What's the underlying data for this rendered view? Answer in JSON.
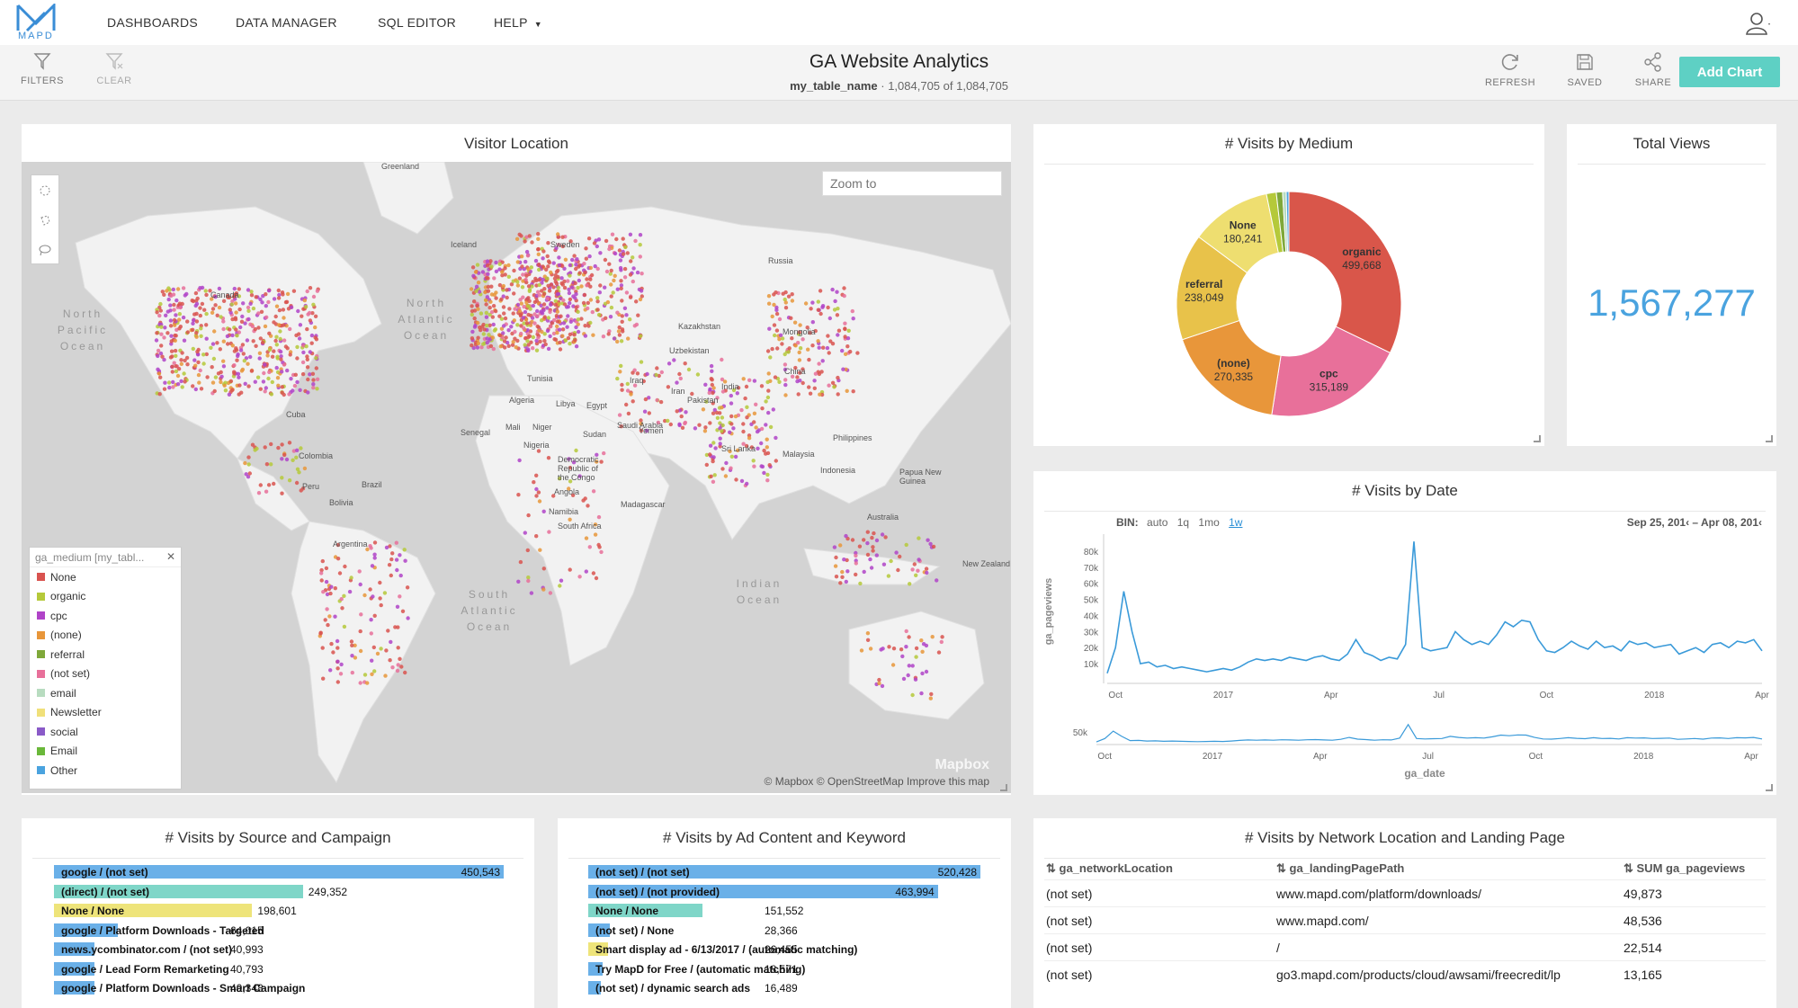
{
  "nav": {
    "logo_text": "MAPD",
    "items": [
      "DASHBOARDS",
      "DATA MANAGER",
      "SQL EDITOR",
      "HELP"
    ]
  },
  "toolbar": {
    "filters": "FILTERS",
    "clear": "CLEAR",
    "title": "GA Website Analytics",
    "table_name": "my_table_name",
    "row_count": "1,084,705 of 1,084,705",
    "refresh": "REFRESH",
    "saved": "SAVED",
    "share": "SHARE",
    "add_chart": "Add Chart"
  },
  "map": {
    "title": "Visitor Location",
    "zoom_placeholder": "Zoom to",
    "legend_title": "ga_medium [my_tabl...",
    "legend": [
      {
        "label": "None",
        "color": "#d9534f"
      },
      {
        "label": "organic",
        "color": "#b5c93a"
      },
      {
        "label": "cpc",
        "color": "#b044c8"
      },
      {
        "label": "(none)",
        "color": "#e8963a"
      },
      {
        "label": "referral",
        "color": "#7fa83a"
      },
      {
        "label": "(not set)",
        "color": "#e8709a"
      },
      {
        "label": "email",
        "color": "#b8dcc0"
      },
      {
        "label": "Newsletter",
        "color": "#f0e07a"
      },
      {
        "label": "social",
        "color": "#8a5ac8"
      },
      {
        "label": "Email",
        "color": "#6ab83a"
      },
      {
        "label": "Other",
        "color": "#4aa3df"
      }
    ],
    "attribution": "© Mapbox   © OpenStreetMap   Improve this map",
    "mapbox": "Mapbox",
    "place_labels": [
      "Greenland",
      "Iceland",
      "Sweden",
      "Russia",
      "Canada",
      "Kazakhstan",
      "Mongolia",
      "Uzbekistan",
      "China",
      "Tunisia",
      "Iraq",
      "Iran",
      "Pakistan",
      "Algeria",
      "Libya",
      "Egypt",
      "Saudi Arabia",
      "Yemen",
      "Mali",
      "Niger",
      "Sudan",
      "Senegal",
      "Nigeria",
      "Democratic Republic of the Congo",
      "Angola",
      "Namibia",
      "South Africa",
      "Madagascar",
      "India",
      "Sri Lanka",
      "Philippines",
      "Malaysia",
      "Indonesia",
      "Papua New Guinea",
      "Australia",
      "New Zealand",
      "Cuba",
      "Colombia",
      "Peru",
      "Brazil",
      "Bolivia",
      "Argentina"
    ],
    "oceans": [
      "North Pacific Ocean",
      "North Atlantic Ocean",
      "South Atlantic Ocean",
      "Indian Ocean"
    ]
  },
  "medium_chart": {
    "title": "# Visits by Medium",
    "chart_data": {
      "type": "pie",
      "slices": [
        {
          "label": "organic",
          "value": 499668,
          "display": "499,668",
          "color": "#d9564a"
        },
        {
          "label": "cpc",
          "value": 315189,
          "display": "315,189",
          "color": "#e8709a"
        },
        {
          "label": "(none)",
          "value": 270335,
          "display": "270,335",
          "color": "#e8963a"
        },
        {
          "label": "referral",
          "value": 238049,
          "display": "238,049",
          "color": "#e8c24a"
        },
        {
          "label": "None",
          "value": 180241,
          "display": "180,241",
          "color": "#eede70"
        },
        {
          "label": "",
          "value": 22000,
          "display": "",
          "color": "#b5c93a"
        },
        {
          "label": "",
          "value": 14000,
          "display": "",
          "color": "#7fa83a"
        },
        {
          "label": "",
          "value": 8000,
          "display": "",
          "color": "#b8dcc0"
        },
        {
          "label": "",
          "value": 6000,
          "display": "",
          "color": "#4aa3df"
        }
      ]
    }
  },
  "total_views": {
    "title": "Total Views",
    "value": "1,567,277"
  },
  "date_chart": {
    "title": "# Visits by Date",
    "bin_label": "BIN:",
    "bin_options": [
      "auto",
      "1q",
      "1mo",
      "1w"
    ],
    "bin_active": "1w",
    "range": "Sep 25, 201‹ – Apr 08, 201‹",
    "chart_data": {
      "type": "line",
      "ylabel": "ga_pageviews",
      "xlabel": "ga_date",
      "yticks": [
        "10k",
        "20k",
        "30k",
        "40k",
        "50k",
        "60k",
        "70k",
        "80k"
      ],
      "ylim": [
        0,
        85000
      ],
      "xticks": [
        "Oct",
        "2017",
        "Apr",
        "Jul",
        "Oct",
        "2018",
        "Apr"
      ],
      "xtick_weeks": [
        1,
        14,
        27,
        40,
        53,
        66,
        79
      ],
      "brush_ytick": "50k",
      "values": [
        4000,
        20000,
        55000,
        30000,
        10000,
        11000,
        8000,
        9000,
        7000,
        8000,
        7000,
        6000,
        5000,
        6000,
        7000,
        6000,
        8000,
        11000,
        13000,
        12000,
        13000,
        12000,
        14000,
        13000,
        12000,
        14000,
        15000,
        13000,
        12000,
        16000,
        25000,
        17000,
        15000,
        12000,
        14000,
        13000,
        22000,
        86000,
        20000,
        18000,
        19000,
        20000,
        30000,
        25000,
        22000,
        24000,
        22000,
        28000,
        36000,
        33000,
        37000,
        36000,
        25000,
        18000,
        17000,
        20000,
        24000,
        21000,
        19000,
        24000,
        20000,
        21000,
        18000,
        24000,
        22000,
        23000,
        20000,
        21000,
        22000,
        16000,
        18000,
        20000,
        17000,
        22000,
        23000,
        20000,
        24000,
        23000,
        25000,
        18000
      ]
    }
  },
  "source_chart": {
    "title": "# Visits by Source and Campaign",
    "chart_data": {
      "type": "bar",
      "categories": [
        "google / (not set)",
        "(direct) / (not set)",
        "None / None",
        "google / Platform Downloads - Targeted",
        "news.ycombinator.com / (not set)",
        "google / Lead Form Remarketing",
        "google / Platform Downloads - Smart Campaign"
      ],
      "values": [
        450543,
        249352,
        198601,
        64015,
        40993,
        40793,
        40348
      ],
      "labels": [
        "450,543",
        "249,352",
        "198,601",
        "64,015",
        "40,993",
        "40,793",
        "40,348"
      ],
      "colors": [
        "#6ab0e8",
        "#7fd6c8",
        "#eee47a",
        "#6ab0e8",
        "#6ab0e8",
        "#6ab0e8",
        "#6ab0e8"
      ]
    }
  },
  "adcontent_chart": {
    "title": "# Visits by Ad Content and Keyword",
    "chart_data": {
      "type": "bar",
      "categories": [
        "(not set) / (not set)",
        "(not set) / (not provided)",
        "None / None",
        "(not set) / None",
        "Smart display ad - 6/13/2017 / (automatic matching)",
        "Try MapD for Free / (automatic matching)",
        "(not set) / dynamic search ads"
      ],
      "values": [
        520428,
        463994,
        151552,
        28366,
        26455,
        18571,
        16489
      ],
      "labels": [
        "520,428",
        "463,994",
        "151,552",
        "28,366",
        "26,455",
        "18,571",
        "16,489"
      ],
      "colors": [
        "#6ab0e8",
        "#6ab0e8",
        "#7fd6c8",
        "#6ab0e8",
        "#eee47a",
        "#6ab0e8",
        "#6ab0e8"
      ]
    }
  },
  "network_table": {
    "title": "# Visits by Network Location and Landing Page",
    "columns": [
      "ga_networkLocation",
      "ga_landingPagePath",
      "SUM ga_pageviews"
    ],
    "rows": [
      [
        "(not set)",
        "www.mapd.com/platform/downloads/",
        "49,873"
      ],
      [
        "(not set)",
        "www.mapd.com/",
        "48,536"
      ],
      [
        "(not set)",
        "/",
        "22,514"
      ],
      [
        "(not set)",
        "go3.mapd.com/products/cloud/awsami/freecredit/lp",
        "13,165"
      ]
    ]
  }
}
